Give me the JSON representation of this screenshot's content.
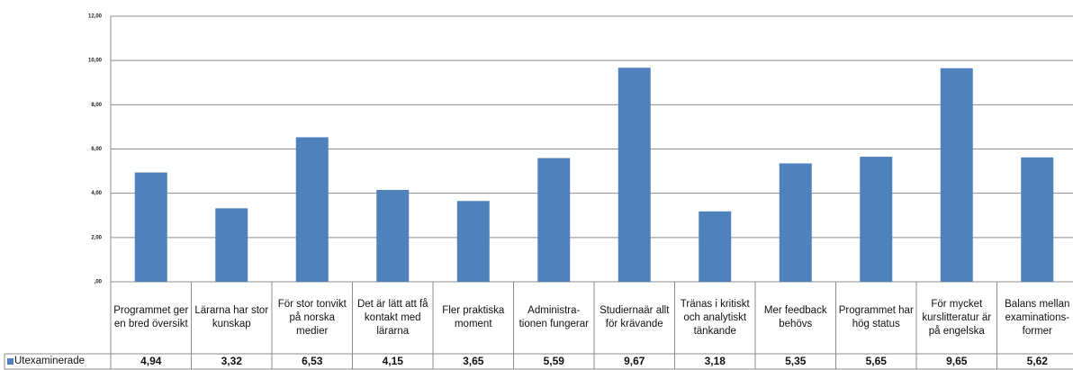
{
  "chart_data": {
    "type": "bar",
    "categories": [
      "Programmet ger en bred översikt",
      "Lärarna har stor kunskap",
      "För stor tonvikt på norska medier",
      "Det är lätt att få kontakt med lärarna",
      "Fler praktiska moment",
      "Administra-tionen fungerar",
      "Studiernaär allt för krävande",
      "Tränas i kritiskt och analytiskt tänkande",
      "Mer feedback behövs",
      "Programmet har hög status",
      "För mycket kurslitteratur är på engelska",
      "Balans mellan examinations-former"
    ],
    "series": [
      {
        "name": "Utexaminerade",
        "color": "#4f81bd",
        "values": [
          4.94,
          3.32,
          6.53,
          4.15,
          3.65,
          5.59,
          9.67,
          3.18,
          5.35,
          5.65,
          9.65,
          5.62
        ],
        "value_labels": [
          "4,94",
          "3,32",
          "6,53",
          "4,15",
          "3,65",
          "5,59",
          "9,67",
          "3,18",
          "5,35",
          "5,65",
          "9,65",
          "5,62"
        ]
      }
    ],
    "ylim": [
      0,
      12
    ],
    "yticks": [
      {
        "value": 0,
        "label": ",00"
      },
      {
        "value": 2,
        "label": "2,00"
      },
      {
        "value": 4,
        "label": "4,00"
      },
      {
        "value": 6,
        "label": "6,00"
      },
      {
        "value": 8,
        "label": "8,00"
      },
      {
        "value": 10,
        "label": "10,00"
      },
      {
        "value": 12,
        "label": "12,00"
      }
    ],
    "grid": true
  }
}
